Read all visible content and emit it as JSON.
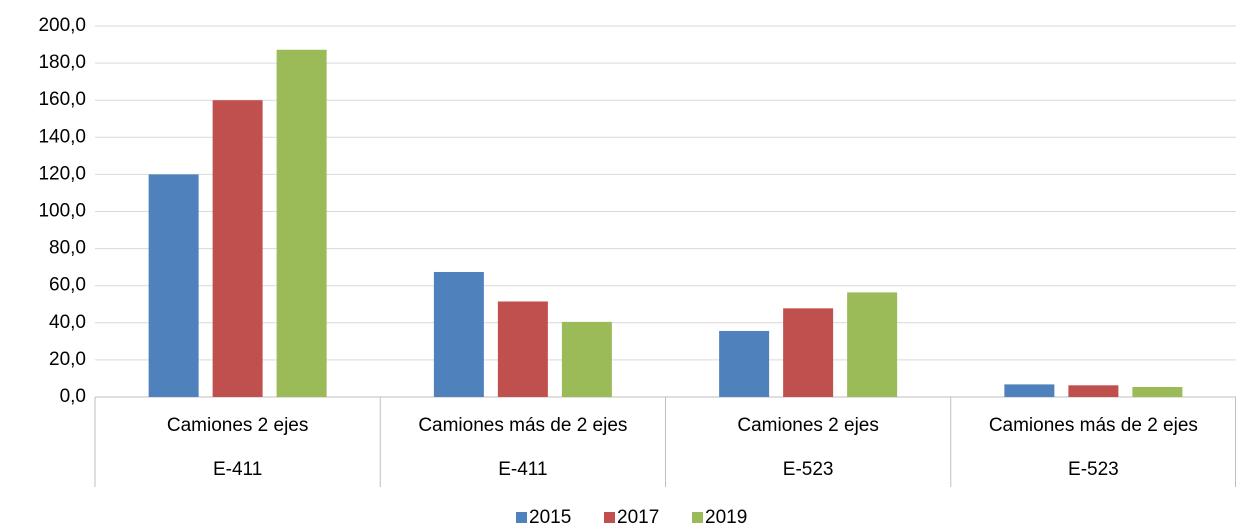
{
  "chart_data": {
    "type": "bar",
    "categories": [
      "Camiones 2 ejes",
      "Camiones más de 2 ejes",
      "Camiones 2 ejes",
      "Camiones más de 2 ejes"
    ],
    "category_groups": [
      "E-411",
      "E-411",
      "E-523",
      "E-523"
    ],
    "series": [
      {
        "name": "2015",
        "color": "#4f81bd",
        "values": [
          120,
          67.4,
          35.6,
          6.8
        ]
      },
      {
        "name": "2017",
        "color": "#c0504d",
        "values": [
          160,
          51.5,
          47.8,
          6.3
        ]
      },
      {
        "name": "2019",
        "color": "#9bbb59",
        "values": [
          187.2,
          40.5,
          56.4,
          5.4
        ]
      }
    ],
    "ylim": [
      0,
      200
    ],
    "yticks": [
      {
        "value": 0,
        "label": "0,0"
      },
      {
        "value": 20,
        "label": "20,0"
      },
      {
        "value": 40,
        "label": "40,0"
      },
      {
        "value": 60,
        "label": "60,0"
      },
      {
        "value": 80,
        "label": "80,0"
      },
      {
        "value": 100,
        "label": "100,0"
      },
      {
        "value": 120,
        "label": "120,0"
      },
      {
        "value": 140,
        "label": "140,0"
      },
      {
        "value": 160,
        "label": "160,0"
      },
      {
        "value": 180,
        "label": "180,0"
      },
      {
        "value": 200,
        "label": "200,0"
      }
    ],
    "grid": true,
    "legend": "bottom"
  }
}
